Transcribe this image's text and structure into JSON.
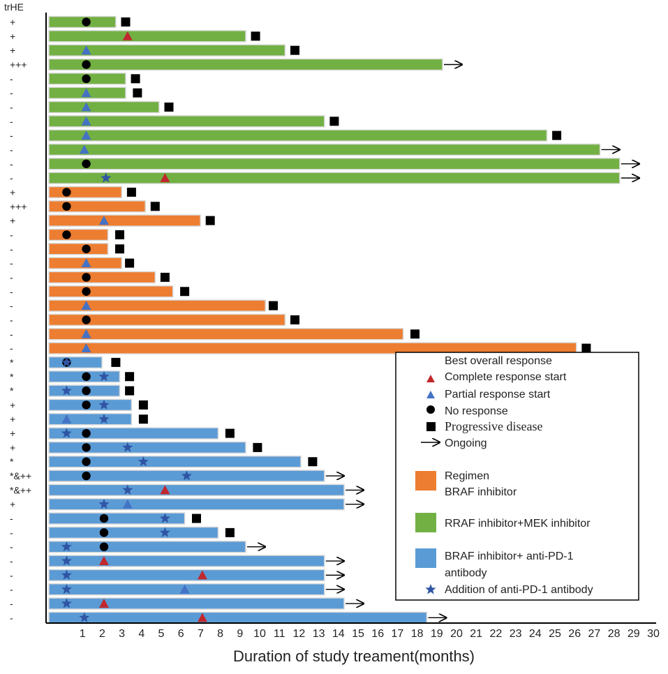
{
  "chart_data": {
    "type": "swimmer",
    "title": "",
    "xlabel": "Duration of study treament(months)",
    "row_header": "trHE",
    "xlim": [
      0,
      30
    ],
    "x_ticks": [
      1,
      2,
      3,
      4,
      5,
      6,
      7,
      8,
      9,
      10,
      11,
      12,
      13,
      14,
      15,
      16,
      17,
      18,
      19,
      20,
      21,
      22,
      23,
      24,
      25,
      26,
      27,
      28,
      29,
      30
    ],
    "colors": {
      "green": "#72b043",
      "orange": "#ed7d31",
      "blue": "#5b9bd5",
      "complete": "#c0282d",
      "partial": "#4472c4",
      "star": "#2f55a4",
      "black": "#000000"
    },
    "legend": {
      "title": "Best overall response",
      "complete": "Complete response start",
      "partial": "Partial response start",
      "none": "No response",
      "progressive": "Progressive disease",
      "ongoing": "Ongoing",
      "regimen_title": "Regimen",
      "braf": "BRAF inhibitor",
      "braf_mek": "RRAF inhibitor+MEK inhibitor",
      "braf_pd1_a": "BRAF inhibitor+ anti-PD-1",
      "braf_pd1_b": "antibody",
      "pd1_add": "Addition of anti-PD-1 antibody"
    },
    "patients": [
      {
        "trHE": "+",
        "regimen": "green",
        "end": 3.4,
        "markers": [
          {
            "t": "circle",
            "x": 1.9
          }
        ],
        "pd": 3.9
      },
      {
        "trHE": "+",
        "regimen": "green",
        "end": 10.0,
        "markers": [
          {
            "t": "tri_red",
            "x": 4.0
          }
        ],
        "pd": 10.5
      },
      {
        "trHE": "+",
        "regimen": "green",
        "end": 12.0,
        "markers": [
          {
            "t": "tri_blue",
            "x": 1.9
          }
        ],
        "pd": 12.5
      },
      {
        "trHE": "+++",
        "regimen": "green",
        "end": 20.0,
        "markers": [
          {
            "t": "circle",
            "x": 1.9
          }
        ],
        "ongoing": true
      },
      {
        "trHE": "-",
        "regimen": "green",
        "end": 3.9,
        "markers": [
          {
            "t": "circle",
            "x": 1.9
          }
        ],
        "pd": 4.4
      },
      {
        "trHE": "-",
        "regimen": "green",
        "end": 3.9,
        "markers": [
          {
            "t": "tri_blue",
            "x": 1.9
          }
        ],
        "pd": 4.5
      },
      {
        "trHE": "-",
        "regimen": "green",
        "end": 5.6,
        "markers": [
          {
            "t": "tri_blue",
            "x": 1.9
          }
        ],
        "pd": 6.1
      },
      {
        "trHE": "-",
        "regimen": "green",
        "end": 14.0,
        "markers": [
          {
            "t": "tri_blue",
            "x": 1.9
          }
        ],
        "pd": 14.5
      },
      {
        "trHE": "-",
        "regimen": "green",
        "end": 25.3,
        "markers": [
          {
            "t": "tri_blue",
            "x": 1.9
          }
        ],
        "pd": 25.8
      },
      {
        "trHE": "-",
        "regimen": "green",
        "end": 28.0,
        "markers": [
          {
            "t": "tri_blue",
            "x": 1.8
          }
        ],
        "ongoing": true
      },
      {
        "trHE": "-",
        "regimen": "green",
        "end": 29.0,
        "markers": [
          {
            "t": "circle",
            "x": 1.9
          }
        ],
        "ongoing": true
      },
      {
        "trHE": "-",
        "regimen": "green",
        "end": 29.0,
        "markers": [
          {
            "t": "tri_red",
            "x": 5.9
          },
          {
            "t": "star",
            "x": 2.9
          }
        ],
        "ongoing": true
      },
      {
        "trHE": "+",
        "regimen": "orange",
        "end": 3.7,
        "markers": [
          {
            "t": "circle",
            "x": 0.9
          }
        ],
        "pd": 4.2
      },
      {
        "trHE": "+++",
        "regimen": "orange",
        "end": 4.9,
        "markers": [
          {
            "t": "circle",
            "x": 0.9
          }
        ],
        "pd": 5.4
      },
      {
        "trHE": "+",
        "regimen": "orange",
        "end": 7.7,
        "markers": [
          {
            "t": "tri_blue",
            "x": 2.8
          }
        ],
        "pd": 8.2
      },
      {
        "trHE": "-",
        "regimen": "orange",
        "end": 3.0,
        "markers": [
          {
            "t": "circle",
            "x": 0.9
          }
        ],
        "pd": 3.6
      },
      {
        "trHE": "-",
        "regimen": "orange",
        "end": 3.0,
        "markers": [
          {
            "t": "circle",
            "x": 1.9
          }
        ],
        "pd": 3.6
      },
      {
        "trHE": "-",
        "regimen": "orange",
        "end": 3.7,
        "markers": [
          {
            "t": "tri_blue",
            "x": 1.9
          }
        ],
        "pd": 4.1
      },
      {
        "trHE": "-",
        "regimen": "orange",
        "end": 5.4,
        "markers": [
          {
            "t": "circle",
            "x": 1.9
          }
        ],
        "pd": 5.9
      },
      {
        "trHE": "-",
        "regimen": "orange",
        "end": 6.3,
        "markers": [
          {
            "t": "circle",
            "x": 1.9
          }
        ],
        "pd": 6.9
      },
      {
        "trHE": "-",
        "regimen": "orange",
        "end": 11.0,
        "markers": [
          {
            "t": "tri_blue",
            "x": 1.9
          }
        ],
        "pd": 11.4
      },
      {
        "trHE": "-",
        "regimen": "orange",
        "end": 12.0,
        "markers": [
          {
            "t": "circle",
            "x": 1.9
          }
        ],
        "pd": 12.5
      },
      {
        "trHE": "-",
        "regimen": "orange",
        "end": 18.0,
        "markers": [
          {
            "t": "tri_blue",
            "x": 1.9
          }
        ],
        "pd": 18.6
      },
      {
        "trHE": "-",
        "regimen": "orange",
        "end": 26.8,
        "markers": [
          {
            "t": "tri_blue",
            "x": 1.9
          }
        ],
        "pd": 27.3
      },
      {
        "trHE": "*",
        "regimen": "blue",
        "end": 2.7,
        "markers": [
          {
            "t": "circle",
            "x": 0.9
          },
          {
            "t": "star",
            "x": 0.9
          }
        ],
        "pd": 3.4
      },
      {
        "trHE": "*",
        "regimen": "blue",
        "end": 3.6,
        "markers": [
          {
            "t": "circle",
            "x": 1.9
          },
          {
            "t": "star",
            "x": 2.8
          }
        ],
        "pd": 4.1
      },
      {
        "trHE": "*",
        "regimen": "blue",
        "end": 3.6,
        "markers": [
          {
            "t": "star",
            "x": 0.9
          },
          {
            "t": "circle",
            "x": 1.9
          }
        ],
        "pd": 4.1
      },
      {
        "trHE": "+",
        "regimen": "blue",
        "end": 4.2,
        "markers": [
          {
            "t": "circle",
            "x": 1.9
          },
          {
            "t": "star",
            "x": 2.8
          }
        ],
        "pd": 4.8
      },
      {
        "trHE": "+",
        "regimen": "blue",
        "end": 4.2,
        "markers": [
          {
            "t": "tri_blue",
            "x": 0.9
          },
          {
            "t": "star",
            "x": 2.8
          }
        ],
        "pd": 4.8
      },
      {
        "trHE": "+",
        "regimen": "blue",
        "end": 8.6,
        "markers": [
          {
            "t": "star",
            "x": 0.9
          },
          {
            "t": "circle",
            "x": 1.9
          }
        ],
        "pd": 9.2
      },
      {
        "trHE": "+",
        "regimen": "blue",
        "end": 10.0,
        "markers": [
          {
            "t": "circle",
            "x": 1.9
          },
          {
            "t": "star",
            "x": 4.0
          }
        ],
        "pd": 10.6
      },
      {
        "trHE": "*",
        "regimen": "blue",
        "end": 12.8,
        "markers": [
          {
            "t": "circle",
            "x": 1.9
          },
          {
            "t": "star",
            "x": 4.8
          }
        ],
        "pd": 13.4
      },
      {
        "trHE": "*&++",
        "regimen": "blue",
        "end": 14.0,
        "markers": [
          {
            "t": "circle",
            "x": 1.9
          },
          {
            "t": "star",
            "x": 7.0
          }
        ],
        "ongoing": true
      },
      {
        "trHE": "*&++",
        "regimen": "blue",
        "end": 15.0,
        "markers": [
          {
            "t": "star",
            "x": 4.0
          },
          {
            "t": "tri_red",
            "x": 5.9
          }
        ],
        "ongoing": true
      },
      {
        "trHE": "+",
        "regimen": "blue",
        "end": 15.0,
        "markers": [
          {
            "t": "star",
            "x": 2.8
          },
          {
            "t": "tri_blue",
            "x": 4.0
          }
        ],
        "ongoing": true
      },
      {
        "trHE": "-",
        "regimen": "blue",
        "end": 6.9,
        "markers": [
          {
            "t": "circle",
            "x": 2.8
          },
          {
            "t": "star",
            "x": 5.9
          }
        ],
        "pd": 7.5
      },
      {
        "trHE": "-",
        "regimen": "blue",
        "end": 8.6,
        "markers": [
          {
            "t": "circle",
            "x": 2.8
          },
          {
            "t": "star",
            "x": 5.9
          }
        ],
        "pd": 9.2
      },
      {
        "trHE": "-",
        "regimen": "blue",
        "end": 10.0,
        "markers": [
          {
            "t": "star",
            "x": 0.9
          },
          {
            "t": "circle",
            "x": 2.8
          }
        ],
        "ongoing": true
      },
      {
        "trHE": "-",
        "regimen": "blue",
        "end": 14.0,
        "markers": [
          {
            "t": "star",
            "x": 0.9
          },
          {
            "t": "tri_red",
            "x": 2.8
          }
        ],
        "ongoing": true
      },
      {
        "trHE": "-",
        "regimen": "blue",
        "end": 14.0,
        "markers": [
          {
            "t": "star",
            "x": 0.9
          },
          {
            "t": "tri_red",
            "x": 7.8
          }
        ],
        "ongoing": true
      },
      {
        "trHE": "-",
        "regimen": "blue",
        "end": 14.0,
        "markers": [
          {
            "t": "star",
            "x": 0.9
          },
          {
            "t": "tri_blue",
            "x": 6.9
          }
        ],
        "ongoing": true
      },
      {
        "trHE": "-",
        "regimen": "blue",
        "end": 15.0,
        "markers": [
          {
            "t": "star",
            "x": 0.9
          },
          {
            "t": "tri_red",
            "x": 2.8
          }
        ],
        "ongoing": true
      },
      {
        "trHE": "-",
        "regimen": "blue",
        "end": 19.2,
        "markers": [
          {
            "t": "star",
            "x": 1.8
          },
          {
            "t": "tri_red",
            "x": 7.8
          }
        ],
        "ongoing": true
      }
    ]
  }
}
